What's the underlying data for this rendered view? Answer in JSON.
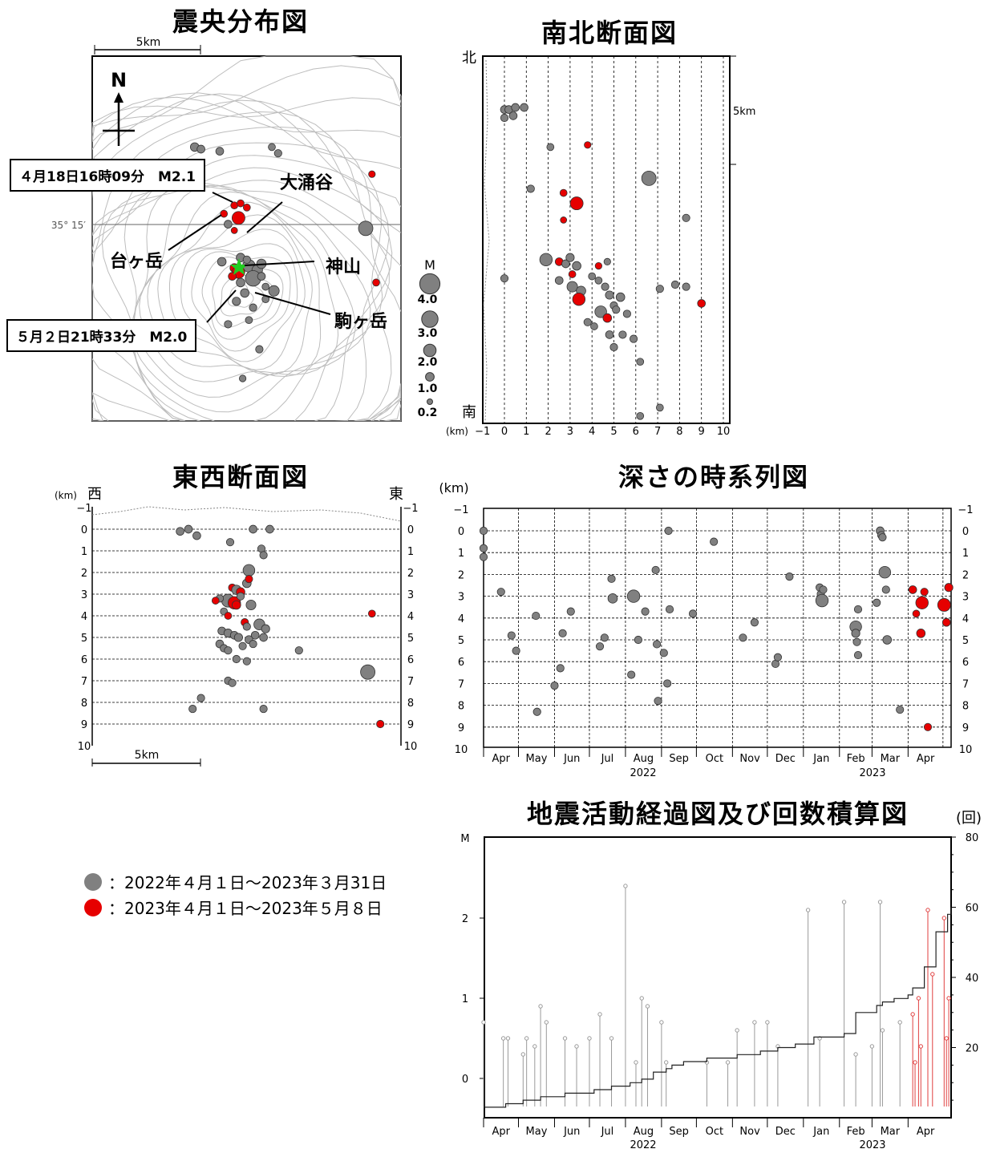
{
  "titles": {
    "map": "震央分布図",
    "ns": "南北断面図",
    "ew": "東西断面図",
    "depth_time": "深さの時系列図",
    "activity": "地震活動経過図及び回数積算図"
  },
  "map": {
    "scale_label": "5km",
    "lat_label": "35° 15′",
    "north": "N",
    "places": {
      "owakudani": "大涌谷",
      "daigatake": "台ヶ岳",
      "kamiyama": "神山",
      "komagatake": "駒ヶ岳"
    },
    "callouts": {
      "upper": "４月18日16時09分　M2.1",
      "lower": "５月２日21時33分　M2.0"
    },
    "mag_legend": {
      "title": "M",
      "values": [
        "4.0",
        "3.0",
        "2.0",
        "1.0",
        "0.2"
      ]
    }
  },
  "ns_section": {
    "north": "北",
    "south": "南",
    "scale": "5km",
    "km_unit": "(km)",
    "x_ticks": [
      "−1",
      "0",
      "1",
      "2",
      "3",
      "4",
      "5",
      "6",
      "7",
      "8",
      "9",
      "10"
    ]
  },
  "ew_section": {
    "west": "西",
    "east": "東",
    "km_unit": "(km)",
    "scale": "5km",
    "y_ticks": [
      "−1",
      "0",
      "1",
      "2",
      "3",
      "4",
      "5",
      "6",
      "7",
      "8",
      "9",
      "10"
    ]
  },
  "depth_time": {
    "km_unit": "(km)",
    "y_ticks": [
      "−1",
      "0",
      "1",
      "2",
      "3",
      "4",
      "5",
      "6",
      "7",
      "8",
      "9",
      "10"
    ],
    "months": [
      "Apr",
      "May",
      "Jun",
      "Jul",
      "Aug",
      "Sep",
      "Oct",
      "Nov",
      "Dec",
      "Jan",
      "Feb",
      "Mar",
      "Apr"
    ],
    "years": [
      "2022",
      "2023"
    ]
  },
  "activity": {
    "m_label": "M",
    "count_unit": "(回)",
    "m_ticks": [
      "0",
      "1",
      "2"
    ],
    "count_ticks": [
      "20",
      "40",
      "60",
      "80"
    ],
    "months": [
      "Apr",
      "May",
      "Jun",
      "Jul",
      "Aug",
      "Sep",
      "Oct",
      "Nov",
      "Dec",
      "Jan",
      "Feb",
      "Mar",
      "Apr"
    ],
    "years": [
      "2022",
      "2023"
    ]
  },
  "legend": {
    "gray": "：2022年４月１日～2023年３月31日",
    "red": "：2023年４月１日～2023年５月８日"
  },
  "colors": {
    "gray": "#808080",
    "red": "#e60000",
    "green": "#22cc22"
  },
  "chart_data": [
    {
      "type": "scatter",
      "name": "epicenter-map",
      "series": [
        {
          "name": "gray",
          "points": [
            [
              -2.2,
              4.1
            ],
            [
              -1.9,
              4.0
            ],
            [
              -1.0,
              3.9
            ],
            [
              1.5,
              4.1
            ],
            [
              1.8,
              3.8
            ],
            [
              6.0,
              0.2
            ],
            [
              -0.6,
              0.4
            ],
            [
              0.0,
              -1.2
            ],
            [
              0.4,
              -1.6
            ],
            [
              0.8,
              -1.8
            ],
            [
              1.0,
              -1.5
            ],
            [
              0.6,
              -2.2
            ],
            [
              0.0,
              -2.4
            ],
            [
              1.2,
              -2.6
            ],
            [
              1.6,
              -2.8
            ],
            [
              1.2,
              -3.2
            ],
            [
              0.6,
              -3.6
            ],
            [
              -0.2,
              -3.3
            ],
            [
              0.4,
              -4.2
            ],
            [
              0.9,
              -5.6
            ],
            [
              0.1,
              -7.0
            ],
            [
              -0.6,
              -4.4
            ],
            [
              0.2,
              -2.9
            ],
            [
              1.0,
              -2.1
            ],
            [
              0.3,
              -1.3
            ],
            [
              -0.9,
              -1.4
            ]
          ],
          "sizes": [
            1.0,
            0.8,
            0.8,
            0.6,
            0.7,
            2.5,
            0.8,
            1.0,
            2.0,
            1.5,
            1.2,
            2.8,
            1.0,
            0.6,
            1.5,
            0.6,
            0.7,
            0.9,
            0.6,
            0.7,
            0.5,
            0.7,
            1.0,
            0.8,
            0.7,
            1.0
          ]
        },
        {
          "name": "red",
          "points": [
            [
              -0.3,
              1.3
            ],
            [
              0.0,
              1.4
            ],
            [
              0.3,
              1.2
            ],
            [
              -0.8,
              0.9
            ],
            [
              -0.1,
              0.7
            ],
            [
              -0.3,
              0.1
            ],
            [
              -0.3,
              -1.7
            ],
            [
              -0.1,
              -1.9
            ],
            [
              -0.4,
              -2.1
            ],
            [
              6.3,
              2.8
            ],
            [
              6.5,
              -2.4
            ]
          ],
          "sizes": [
            0.6,
            0.6,
            0.6,
            0.6,
            2.1,
            0.4,
            1.0,
            2.0,
            0.8,
            0.5,
            0.6
          ]
        }
      ]
    },
    {
      "type": "scatter",
      "name": "depth-time",
      "xlabel": "",
      "ylabel": "(km)",
      "ylim": [
        -1,
        10
      ],
      "series": [
        {
          "name": "gray",
          "points": [
            [
              "2022-04-01",
              0.0
            ],
            [
              "2022-04-01",
              0.8
            ],
            [
              "2022-04-01",
              1.2
            ],
            [
              "2022-04-16",
              2.8
            ],
            [
              "2022-04-25",
              4.8
            ],
            [
              "2022-04-29",
              5.5
            ],
            [
              "2022-05-16",
              3.9
            ],
            [
              "2022-05-17",
              8.3
            ],
            [
              "2022-06-01",
              7.1
            ],
            [
              "2022-06-06",
              6.3
            ],
            [
              "2022-06-08",
              4.7
            ],
            [
              "2022-06-15",
              3.7
            ],
            [
              "2022-07-10",
              5.3
            ],
            [
              "2022-07-14",
              4.9
            ],
            [
              "2022-07-20",
              2.2
            ],
            [
              "2022-07-21",
              3.1
            ],
            [
              "2022-08-06",
              6.6
            ],
            [
              "2022-08-08",
              3.0
            ],
            [
              "2022-08-12",
              5.0
            ],
            [
              "2022-08-18",
              3.7
            ],
            [
              "2022-08-27",
              1.8
            ],
            [
              "2022-08-28",
              5.2
            ],
            [
              "2022-08-29",
              7.8
            ],
            [
              "2022-09-03",
              5.6
            ],
            [
              "2022-09-06",
              7.0
            ],
            [
              "2022-09-07",
              0.0
            ],
            [
              "2022-09-08",
              3.6
            ],
            [
              "2022-09-28",
              3.8
            ],
            [
              "2022-10-16",
              0.5
            ],
            [
              "2022-11-10",
              4.9
            ],
            [
              "2022-11-20",
              4.2
            ],
            [
              "2022-12-08",
              6.1
            ],
            [
              "2022-12-10",
              5.8
            ],
            [
              "2022-12-20",
              2.1
            ],
            [
              "2023-01-15",
              2.6
            ],
            [
              "2023-01-16",
              2.9
            ],
            [
              "2023-01-17",
              3.2
            ],
            [
              "2023-01-18",
              2.7
            ],
            [
              "2023-02-15",
              4.4
            ],
            [
              "2023-02-15",
              4.7
            ],
            [
              "2023-02-16",
              5.1
            ],
            [
              "2023-02-17",
              3.6
            ],
            [
              "2023-02-17",
              5.7
            ],
            [
              "2023-03-05",
              3.3
            ],
            [
              "2023-03-08",
              0.0
            ],
            [
              "2023-03-09",
              0.2
            ],
            [
              "2023-03-10",
              0.3
            ],
            [
              "2023-03-12",
              1.9
            ],
            [
              "2023-03-13",
              2.7
            ],
            [
              "2023-03-14",
              5.0
            ],
            [
              "2023-03-25",
              8.2
            ]
          ]
        },
        {
          "name": "red",
          "points": [
            [
              "2023-04-05",
              2.7
            ],
            [
              "2023-04-08",
              3.8
            ],
            [
              "2023-04-12",
              4.7
            ],
            [
              "2023-04-13",
              3.3
            ],
            [
              "2023-04-15",
              2.8
            ],
            [
              "2023-04-18",
              9.0
            ],
            [
              "2023-05-02",
              3.4
            ],
            [
              "2023-05-04",
              4.2
            ],
            [
              "2023-05-06",
              2.6
            ]
          ]
        }
      ]
    },
    {
      "type": "line",
      "name": "activity",
      "ylabel": "M",
      "y2label": "(回)",
      "ylim": [
        -0.5,
        3
      ],
      "y2lim": [
        0,
        80
      ],
      "cumulative_points": [
        [
          "2022-04-01",
          3
        ],
        [
          "2022-04-20",
          4
        ],
        [
          "2022-05-05",
          5
        ],
        [
          "2022-05-20",
          6
        ],
        [
          "2022-06-10",
          7
        ],
        [
          "2022-07-05",
          8
        ],
        [
          "2022-07-20",
          9
        ],
        [
          "2022-08-05",
          10
        ],
        [
          "2022-08-15",
          11
        ],
        [
          "2022-08-25",
          13
        ],
        [
          "2022-09-05",
          14
        ],
        [
          "2022-09-10",
          15
        ],
        [
          "2022-09-20",
          16
        ],
        [
          "2022-10-10",
          17
        ],
        [
          "2022-11-05",
          18
        ],
        [
          "2022-11-25",
          19
        ],
        [
          "2022-12-10",
          20
        ],
        [
          "2022-12-25",
          21
        ],
        [
          "2023-01-10",
          23
        ],
        [
          "2023-02-05",
          24
        ],
        [
          "2023-02-15",
          30
        ],
        [
          "2023-03-05",
          32
        ],
        [
          "2023-03-10",
          33
        ],
        [
          "2023-03-20",
          34
        ],
        [
          "2023-04-01",
          35
        ],
        [
          "2023-04-05",
          37
        ],
        [
          "2023-04-15",
          43
        ],
        [
          "2023-04-25",
          53
        ],
        [
          "2023-05-05",
          58
        ],
        [
          "2023-05-08",
          60
        ]
      ],
      "events_gray": [
        [
          "2022-04-01",
          0.7
        ],
        [
          "2022-04-18",
          0.5
        ],
        [
          "2022-04-22",
          0.5
        ],
        [
          "2022-05-05",
          0.3
        ],
        [
          "2022-05-08",
          0.5
        ],
        [
          "2022-05-15",
          0.4
        ],
        [
          "2022-05-20",
          0.9
        ],
        [
          "2022-05-25",
          0.7
        ],
        [
          "2022-06-10",
          0.5
        ],
        [
          "2022-06-20",
          0.4
        ],
        [
          "2022-07-01",
          0.5
        ],
        [
          "2022-07-10",
          0.8
        ],
        [
          "2022-07-20",
          0.5
        ],
        [
          "2022-08-01",
          2.4
        ],
        [
          "2022-08-10",
          0.2
        ],
        [
          "2022-08-15",
          1.0
        ],
        [
          "2022-08-20",
          0.9
        ],
        [
          "2022-09-01",
          0.7
        ],
        [
          "2022-09-05",
          0.2
        ],
        [
          "2022-10-10",
          0.2
        ],
        [
          "2022-10-28",
          0.2
        ],
        [
          "2022-11-05",
          0.6
        ],
        [
          "2022-11-20",
          0.7
        ],
        [
          "2022-12-01",
          0.7
        ],
        [
          "2022-12-10",
          0.4
        ],
        [
          "2023-01-05",
          2.1
        ],
        [
          "2023-01-15",
          0.5
        ],
        [
          "2023-02-05",
          2.2
        ],
        [
          "2023-02-15",
          0.3
        ],
        [
          "2023-03-01",
          0.4
        ],
        [
          "2023-03-08",
          2.2
        ],
        [
          "2023-03-10",
          0.6
        ],
        [
          "2023-03-25",
          0.7
        ]
      ],
      "events_red": [
        [
          "2023-04-05",
          0.8
        ],
        [
          "2023-04-07",
          0.2
        ],
        [
          "2023-04-10",
          1.0
        ],
        [
          "2023-04-12",
          0.4
        ],
        [
          "2023-04-18",
          2.1
        ],
        [
          "2023-04-22",
          1.3
        ],
        [
          "2023-05-02",
          2.0
        ],
        [
          "2023-05-04",
          0.5
        ],
        [
          "2023-05-06",
          1.0
        ]
      ]
    }
  ]
}
